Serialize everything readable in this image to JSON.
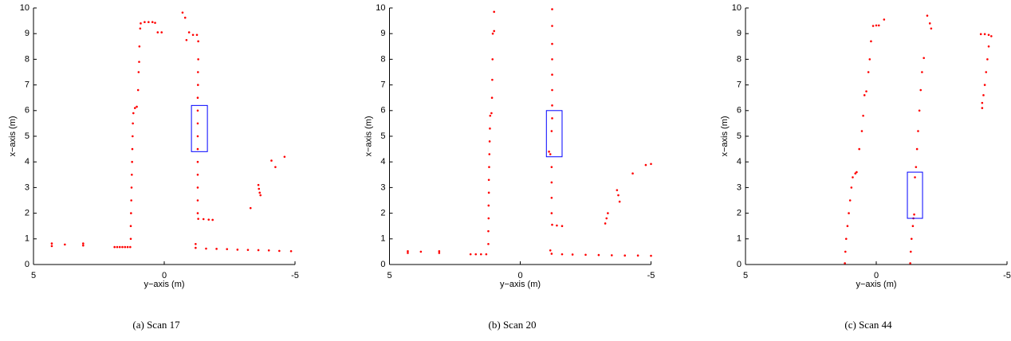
{
  "chart_data": [
    {
      "type": "scatter",
      "caption": "(a)  Scan 17",
      "x_label": "y−axis (m)",
      "y_label": "x−axis (m)",
      "xlim": [
        5,
        -5
      ],
      "ylim": [
        0,
        10
      ],
      "xticks": [
        5,
        0,
        -5
      ],
      "yticks": [
        0,
        1,
        2,
        3,
        4,
        5,
        6,
        7,
        8,
        9,
        10
      ],
      "color": "#ff0000",
      "box": {
        "x": [
          -1.04,
          -1.65
        ],
        "y": [
          4.4,
          6.2
        ],
        "color": "#0000ff"
      },
      "x": [
        4.3,
        4.3,
        3.8,
        3.1,
        3.1,
        1.9,
        1.8,
        1.7,
        1.6,
        1.5,
        1.4,
        1.3,
        1.28,
        1.28,
        1.27,
        1.26,
        1.25,
        1.24,
        1.23,
        1.22,
        1.21,
        1.2,
        1.18,
        1.12,
        1.05,
        1.0,
        0.98,
        0.96,
        0.95,
        0.92,
        0.9,
        0.75,
        0.6,
        0.45,
        0.35,
        0.25,
        0.1,
        -0.7,
        -0.8,
        -0.85,
        -0.95,
        -1.1,
        -1.25,
        -1.3,
        -1.3,
        -1.29,
        -1.29,
        -1.28,
        -1.28,
        -1.28,
        -1.28,
        -1.28,
        -1.28,
        -1.28,
        -1.28,
        -1.28,
        -1.28,
        -1.3,
        -1.5,
        -1.7,
        -1.85,
        -1.2,
        -1.2,
        -1.6,
        -2.0,
        -2.4,
        -2.8,
        -3.2,
        -3.6,
        -4.0,
        -4.4,
        -4.85,
        -3.3,
        -3.6,
        -3.62,
        -3.65,
        -3.68,
        -4.1,
        -4.25,
        -4.6
      ],
      "y": [
        0.72,
        0.82,
        0.78,
        0.74,
        0.82,
        0.68,
        0.68,
        0.68,
        0.68,
        0.68,
        0.68,
        0.68,
        1.0,
        1.5,
        2,
        2.5,
        3,
        3.5,
        4,
        4.5,
        5,
        5.5,
        5.9,
        6.1,
        6.15,
        6.8,
        7.5,
        7.9,
        8.5,
        9.2,
        9.4,
        9.45,
        9.45,
        9.45,
        9.42,
        9.05,
        9.05,
        9.82,
        9.62,
        8.75,
        9.05,
        8.95,
        8.95,
        8.7,
        8.0,
        7.5,
        7.0,
        6.5,
        6.0,
        5.5,
        5.0,
        4.5,
        4.0,
        3.5,
        3.0,
        2.5,
        2.0,
        1.78,
        1.77,
        1.75,
        1.74,
        0.8,
        0.65,
        0.62,
        0.61,
        0.6,
        0.58,
        0.57,
        0.56,
        0.55,
        0.53,
        0.52,
        2.2,
        3.1,
        2.95,
        2.8,
        2.7,
        4.05,
        3.8,
        4.2
      ]
    },
    {
      "type": "scatter",
      "caption": "(b)  Scan 20",
      "x_label": "y−axis (m)",
      "y_label": "x−axis (m)",
      "xlim": [
        5,
        -5
      ],
      "ylim": [
        0,
        10
      ],
      "xticks": [
        5,
        0,
        -5
      ],
      "yticks": [
        0,
        1,
        2,
        3,
        4,
        5,
        6,
        7,
        8,
        9,
        10
      ],
      "color": "#ff0000",
      "box": {
        "x": [
          -1.0,
          -1.6
        ],
        "y": [
          4.2,
          6.0
        ],
        "color": "#0000ff"
      },
      "x": [
        4.3,
        4.3,
        3.8,
        3.1,
        3.1,
        1.9,
        1.7,
        1.5,
        1.3,
        1.22,
        1.22,
        1.21,
        1.21,
        1.2,
        1.2,
        1.19,
        1.18,
        1.17,
        1.16,
        1.15,
        1.1,
        1.08,
        1.07,
        1.06,
        1.05,
        1.0,
        1.0,
        -1.22,
        -1.22,
        -1.22,
        -1.22,
        -1.22,
        -1.22,
        -1.22,
        -1.22,
        -1.2,
        -1.1,
        -1.15,
        -1.2,
        -1.2,
        -1.2,
        -1.2,
        -1.22,
        -1.4,
        -1.6,
        -1.15,
        -1.2,
        -1.6,
        -2.0,
        -2.5,
        -3.0,
        -3.5,
        -4.0,
        -4.5,
        -5.0,
        -3.25,
        -3.3,
        -3.35,
        -3.7,
        -3.75,
        -3.8,
        -4.3,
        -4.8,
        -5.0
      ],
      "y": [
        0.45,
        0.52,
        0.5,
        0.45,
        0.52,
        0.4,
        0.4,
        0.4,
        0.4,
        0.8,
        1.3,
        1.8,
        2.3,
        2.8,
        3.3,
        3.8,
        4.3,
        4.8,
        5.3,
        5.8,
        5.9,
        6.5,
        7.2,
        8.0,
        9.0,
        9.1,
        9.85,
        9.95,
        9.3,
        8.6,
        8.0,
        7.4,
        6.8,
        6.2,
        5.7,
        5.2,
        4.4,
        4.3,
        3.8,
        3.2,
        2.6,
        2.0,
        1.55,
        1.52,
        1.5,
        0.55,
        0.42,
        0.4,
        0.39,
        0.38,
        0.37,
        0.36,
        0.35,
        0.35,
        0.34,
        1.6,
        1.8,
        2.0,
        2.9,
        2.7,
        2.45,
        3.55,
        3.88,
        3.92
      ]
    },
    {
      "type": "scatter",
      "caption": "(c)  Scan 44",
      "x_label": "y−axis (m)",
      "y_label": "x−axis (m)",
      "xlim": [
        5,
        -5
      ],
      "ylim": [
        0,
        10
      ],
      "xticks": [
        5,
        0,
        -5
      ],
      "yticks": [
        0,
        1,
        2,
        3,
        4,
        5,
        6,
        7,
        8,
        9,
        10
      ],
      "color": "#ff0000",
      "box": {
        "x": [
          -1.19,
          -1.77
        ],
        "y": [
          1.8,
          3.6
        ],
        "color": "#0000ff"
      },
      "x": [
        1.2,
        1.18,
        1.15,
        1.1,
        1.05,
        1.0,
        0.95,
        0.9,
        0.8,
        0.75,
        0.65,
        0.55,
        0.5,
        0.45,
        0.38,
        0.3,
        0.25,
        0.2,
        0.12,
        0.0,
        -0.1,
        -0.3,
        -1.3,
        -1.32,
        -1.35,
        -1.4,
        -1.45,
        -1.42,
        -1.48,
        -1.52,
        -1.56,
        -1.6,
        -1.65,
        -1.7,
        -1.75,
        -1.82,
        -1.95,
        -2.05,
        -2.1,
        -4.0,
        -4.15,
        -4.3,
        -4.4,
        -4.3,
        -4.25,
        -4.2,
        -4.15,
        -4.1,
        -4.05,
        -4.05
      ],
      "y": [
        0.05,
        0.5,
        1.0,
        1.5,
        2.0,
        2.5,
        3.0,
        3.4,
        3.55,
        3.6,
        4.5,
        5.2,
        5.8,
        6.6,
        6.75,
        7.5,
        8.0,
        8.7,
        9.3,
        9.32,
        9.32,
        9.55,
        0.05,
        0.5,
        1.0,
        1.5,
        1.95,
        1.8,
        3.4,
        3.8,
        4.5,
        5.2,
        6.0,
        6.8,
        7.5,
        8.05,
        9.7,
        9.4,
        9.2,
        8.98,
        8.98,
        8.95,
        8.9,
        8.5,
        8.0,
        7.5,
        7.0,
        6.6,
        6.3,
        6.1
      ]
    }
  ]
}
